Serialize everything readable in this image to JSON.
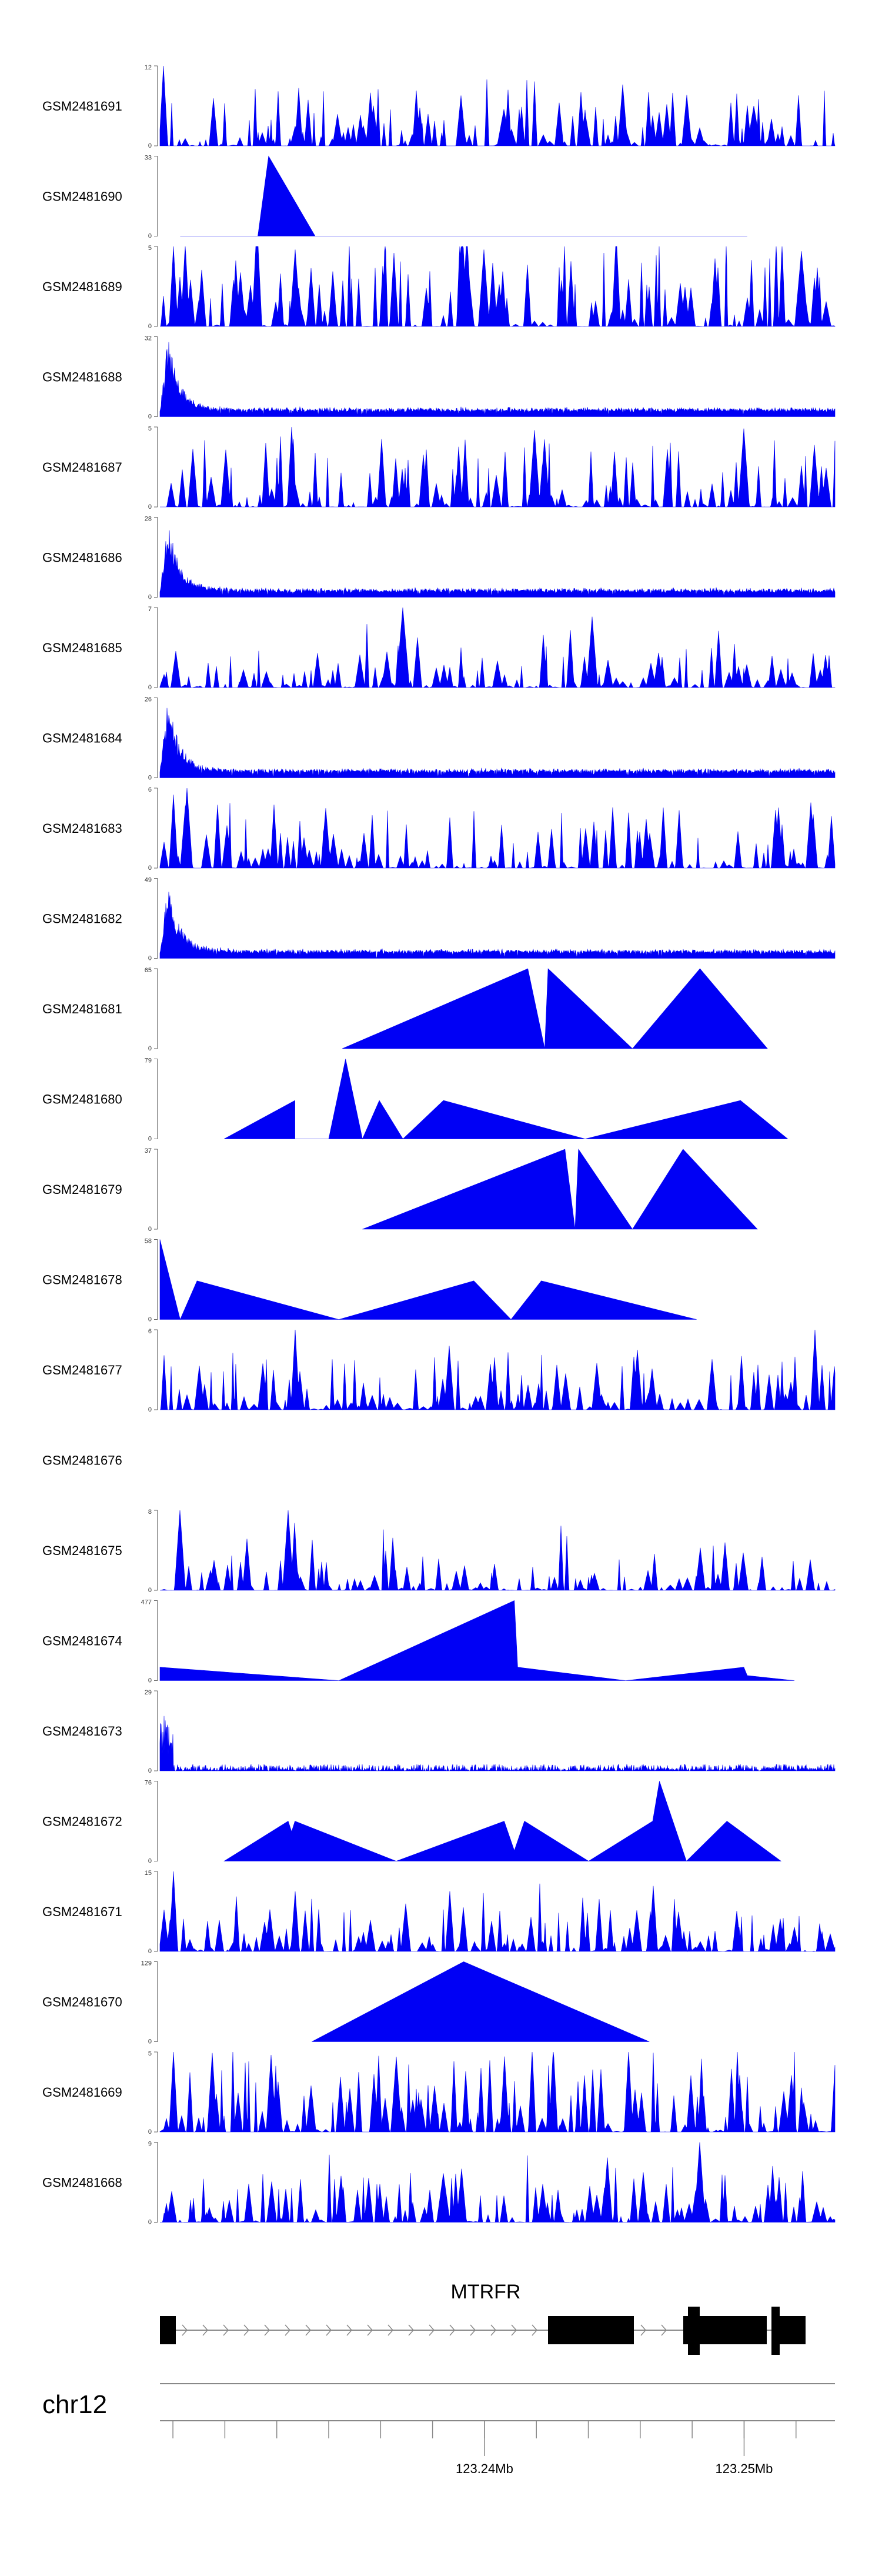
{
  "chart_data": {
    "type": "area",
    "title": "",
    "chromosome": "chr12",
    "gene": {
      "name": "MTRFR",
      "strand": "+"
    },
    "x_range_mb": [
      123.2275,
      123.2535
    ],
    "x_ticks_mb": [
      123.228,
      123.23,
      123.232,
      123.234,
      123.236,
      123.238,
      123.24,
      123.242,
      123.244,
      123.246,
      123.248,
      123.25,
      123.252
    ],
    "x_tick_labels": [
      {
        "value_mb": 123.24,
        "label": "123.24Mb"
      },
      {
        "value_mb": 123.25,
        "label": "123.25Mb"
      }
    ],
    "series": [
      {
        "name": "GSM2481691",
        "ymin": "0",
        "ymax": "12",
        "style": "dense",
        "seed": 11,
        "spikes": [
          [
            0.005,
            12,
            0.006
          ],
          [
            0.51,
            5.5,
            0.01
          ],
          [
            0.63,
            5,
            0.008
          ],
          [
            0.88,
            6,
            0.01
          ]
        ]
      },
      {
        "name": "GSM2481690",
        "ymin": "0",
        "ymax": "33",
        "style": "sparse",
        "peaks": [
          [
            0.03,
            0,
            0.16
          ],
          [
            0.145,
            0,
            0.28
          ],
          [
            0.161,
            33,
            0.32
          ],
          [
            0.23,
            0,
            0.32
          ],
          [
            0.283,
            0,
            0.28
          ],
          [
            0.35,
            0,
            0.31
          ],
          [
            0.389,
            0,
            0.28
          ],
          [
            0.46,
            0,
            0.32
          ],
          [
            0.526,
            0,
            0.28
          ],
          [
            0.61,
            0,
            0.28
          ],
          [
            0.657,
            0,
            0.35
          ],
          [
            0.659,
            0,
            0.38
          ],
          [
            0.665,
            0,
            0.36
          ],
          [
            0.72,
            0,
            0.31
          ],
          [
            0.787,
            0,
            0.31
          ],
          [
            0.822,
            0,
            0.28
          ],
          [
            0.87,
            0,
            0.31
          ]
        ]
      },
      {
        "name": "GSM2481689",
        "ymin": "0",
        "ymax": "5",
        "style": "dense",
        "seed": 23,
        "base": 0.55,
        "spikes": [
          [
            0.02,
            5,
            0.006
          ],
          [
            0.2,
            4.8,
            0.008
          ],
          [
            0.48,
            4.8,
            0.008
          ],
          [
            0.95,
            4.7,
            0.01
          ]
        ]
      },
      {
        "name": "GSM2481688",
        "ymin": "0",
        "ymax": "32",
        "style": "decay",
        "seed": 31,
        "peak": 32
      },
      {
        "name": "GSM2481687",
        "ymin": "0",
        "ymax": "5",
        "style": "dense",
        "seed": 47,
        "base": 0.38,
        "spikes": [
          [
            0.195,
            5,
            0.006
          ],
          [
            0.555,
            4.8,
            0.008
          ],
          [
            0.865,
            4.9,
            0.008
          ]
        ]
      },
      {
        "name": "GSM2481686",
        "ymin": "0",
        "ymax": "28",
        "style": "decay",
        "seed": 53,
        "peak": 28
      },
      {
        "name": "GSM2481685",
        "ymin": "0",
        "ymax": "7",
        "style": "dense",
        "seed": 61,
        "base": 0.22,
        "spikes": [
          [
            0.36,
            7,
            0.01
          ],
          [
            0.64,
            6.2,
            0.008
          ]
        ]
      },
      {
        "name": "GSM2481684",
        "ymin": "0",
        "ymax": "26",
        "style": "decay",
        "seed": 71,
        "peak": 26
      },
      {
        "name": "GSM2481683",
        "ymin": "0",
        "ymax": "6",
        "style": "dense",
        "seed": 83,
        "base": 0.35,
        "spikes": [
          [
            0.04,
            6,
            0.008
          ],
          [
            0.02,
            5.5,
            0.006
          ]
        ]
      },
      {
        "name": "GSM2481682",
        "ymin": "0",
        "ymax": "49",
        "style": "decay",
        "seed": 97,
        "peak": 49
      },
      {
        "name": "GSM2481681",
        "ymin": "0",
        "ymax": "65",
        "style": "sparse",
        "peaks": [
          [
            0.27,
            0,
            0.0
          ],
          [
            0.545,
            65,
            0.0
          ],
          [
            0.57,
            0,
            0.0
          ],
          [
            0.575,
            65,
            0.0
          ],
          [
            0.7,
            0,
            0.0
          ],
          [
            0.8,
            65,
            0.0
          ],
          [
            0.9,
            0,
            0.0
          ]
        ]
      },
      {
        "name": "GSM2481680",
        "ymin": "0",
        "ymax": "79",
        "style": "sparse",
        "peaks": [
          [
            0.095,
            0,
            0.0
          ],
          [
            0.2,
            38,
            0.0
          ],
          [
            0.2,
            0,
            0.0
          ],
          [
            0.25,
            0,
            0.0
          ],
          [
            0.275,
            79,
            0.0
          ],
          [
            0.3,
            0,
            0.0
          ],
          [
            0.325,
            38,
            0.0
          ],
          [
            0.36,
            0,
            0.0
          ],
          [
            0.42,
            38,
            0.0
          ],
          [
            0.63,
            0,
            0.0
          ],
          [
            0.86,
            38,
            0.0
          ],
          [
            0.93,
            0,
            0.0
          ]
        ]
      },
      {
        "name": "GSM2481679",
        "ymin": "0",
        "ymax": "37",
        "style": "sparse",
        "peaks": [
          [
            0.3,
            0,
            0.0
          ],
          [
            0.6,
            37,
            0.0
          ],
          [
            0.615,
            0,
            0.0
          ],
          [
            0.62,
            37,
            0.0
          ],
          [
            0.7,
            0,
            0.0
          ],
          [
            0.775,
            37,
            0.0
          ],
          [
            0.885,
            0,
            0.0
          ]
        ]
      },
      {
        "name": "GSM2481678",
        "ymin": "0",
        "ymax": "58",
        "style": "sparse",
        "peaks": [
          [
            0.0,
            58,
            0.0
          ],
          [
            0.03,
            0,
            0.0
          ],
          [
            0.055,
            28,
            0.0
          ],
          [
            0.265,
            0,
            0.0
          ],
          [
            0.465,
            28,
            0.0
          ],
          [
            0.52,
            0,
            0.0
          ],
          [
            0.565,
            28,
            0.0
          ],
          [
            0.795,
            0,
            0.0
          ]
        ]
      },
      {
        "name": "GSM2481677",
        "ymin": "0",
        "ymax": "6",
        "style": "dense",
        "seed": 101,
        "base": 0.3,
        "spikes": [
          [
            0.2,
            6,
            0.006
          ],
          [
            0.97,
            6,
            0.006
          ]
        ]
      },
      {
        "name": "GSM2481676",
        "ymin": "",
        "ymax": "",
        "style": "empty"
      },
      {
        "name": "GSM2481675",
        "ymin": "0",
        "ymax": "8",
        "style": "dense",
        "seed": 113,
        "base": 0.2,
        "spikes": [
          [
            0.03,
            8,
            0.008
          ],
          [
            0.19,
            8,
            0.008
          ]
        ]
      },
      {
        "name": "GSM2481674",
        "ymin": "0",
        "ymax": "477",
        "style": "sparse",
        "peaks": [
          [
            0.0,
            80,
            0.0
          ],
          [
            0.265,
            0,
            0.0
          ],
          [
            0.525,
            477,
            0.0
          ],
          [
            0.53,
            80,
            0.0
          ],
          [
            0.69,
            0,
            0.0
          ],
          [
            0.865,
            80,
            0.0
          ],
          [
            0.87,
            30,
            0.0
          ],
          [
            0.94,
            0,
            0.0
          ]
        ]
      },
      {
        "name": "GSM2481673",
        "ymin": "0",
        "ymax": "29",
        "style": "decay",
        "seed": 127,
        "peak": 20,
        "flat": true
      },
      {
        "name": "GSM2481672",
        "ymin": "0",
        "ymax": "76",
        "style": "sparse",
        "peaks": [
          [
            0.095,
            0,
            0.0
          ],
          [
            0.19,
            38,
            0.0
          ],
          [
            0.195,
            28,
            0.0
          ],
          [
            0.2,
            38,
            0.0
          ],
          [
            0.35,
            0,
            0.0
          ],
          [
            0.51,
            38,
            0.0
          ],
          [
            0.525,
            10,
            0.0
          ],
          [
            0.54,
            38,
            0.0
          ],
          [
            0.635,
            0,
            0.0
          ],
          [
            0.73,
            38,
            0.0
          ],
          [
            0.74,
            76,
            0.0
          ],
          [
            0.78,
            0,
            0.0
          ],
          [
            0.84,
            38,
            0.0
          ],
          [
            0.92,
            0,
            0.0
          ]
        ]
      },
      {
        "name": "GSM2481671",
        "ymin": "0",
        "ymax": "15",
        "style": "dense",
        "seed": 139,
        "base": 0.22,
        "spikes": [
          [
            0.02,
            15,
            0.006
          ],
          [
            0.018,
            10,
            0.006
          ]
        ]
      },
      {
        "name": "GSM2481670",
        "ymin": "0",
        "ymax": "129",
        "style": "sparse",
        "peaks": [
          [
            0.225,
            0,
            0.0
          ],
          [
            0.45,
            129,
            0.0
          ],
          [
            0.725,
            0,
            0.0
          ]
        ]
      },
      {
        "name": "GSM2481669",
        "ymin": "0",
        "ymax": "5",
        "style": "dense",
        "seed": 151,
        "base": 0.45,
        "spikes": [
          [
            0.02,
            5,
            0.006
          ],
          [
            0.35,
            4.7,
            0.008
          ]
        ]
      },
      {
        "name": "GSM2481668",
        "ymin": "0",
        "ymax": "9",
        "style": "dense",
        "seed": 163,
        "base": 0.3,
        "spikes": [
          [
            0.8,
            9,
            0.008
          ],
          [
            0.42,
            5.5,
            0.01
          ]
        ]
      }
    ],
    "colors": {
      "fill": "#0000f5",
      "axis": "#666666",
      "text": "#000000"
    }
  }
}
